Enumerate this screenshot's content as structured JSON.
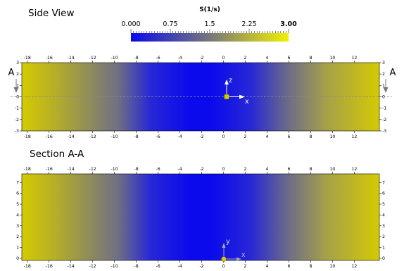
{
  "colorbar": {
    "title": "S(1/s)",
    "labels": [
      "0.000",
      "0.75",
      "1.5",
      "2.25",
      "3.00"
    ],
    "min": 0,
    "max": 3,
    "colors": {
      "low": "#0a0aed",
      "mid": "#777779",
      "high": "#d6cc00"
    }
  },
  "side_view": {
    "title": "Side View",
    "x_ticks": [
      "-18",
      "-16",
      "-14",
      "-12",
      "-10",
      "-8",
      "-6",
      "-4",
      "-2",
      "0",
      "2",
      "4",
      "6",
      "8",
      "10",
      "12"
    ],
    "y_ticks": [
      "3",
      "2",
      "1",
      "0",
      "-1",
      "-2",
      "-3"
    ],
    "x_range": [
      -18.5,
      14.3
    ],
    "y_range": [
      -3,
      3
    ],
    "section_marker_left": "A",
    "section_marker_right": "A",
    "axis_labels": {
      "vertical": "z",
      "horizontal": "x"
    }
  },
  "section_aa": {
    "title": "Section A-A",
    "x_ticks": [
      "-18",
      "-16",
      "-14",
      "-12",
      "-10",
      "-8",
      "-6",
      "-4",
      "-2",
      "0",
      "2",
      "4",
      "6",
      "8",
      "10",
      "12"
    ],
    "y_ticks": [
      "7",
      "6",
      "5",
      "4",
      "3",
      "2",
      "1",
      "0"
    ],
    "x_range": [
      -18.5,
      14.3
    ],
    "y_range": [
      -0.2,
      7.8
    ],
    "axis_labels": {
      "vertical": "y",
      "horizontal": "x"
    }
  }
}
